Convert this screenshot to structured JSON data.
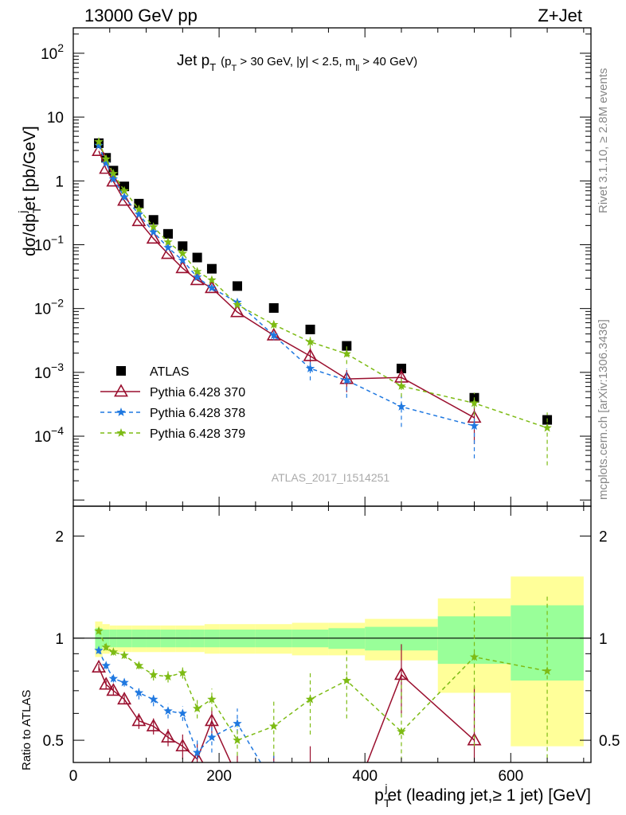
{
  "header": {
    "left": "13000 GeV pp",
    "right": "Z+Jet"
  },
  "plot_title": {
    "main": "Jet p",
    "main_sub": "T",
    "cond_a": "(p",
    "cond_a_sub": "T",
    "cond_b": " > 30 GeV, |y| < 2.5, m",
    "cond_b_sub": "ll",
    "cond_c": " > 40 GeV)"
  },
  "side_labels": {
    "rivet": "Rivet 3.1.10, ≥ 2.8M events",
    "mcplots": "mcplots.cern.ch [arXiv:1306.3436]"
  },
  "analysis_id": "ATLAS_2017_I1514251",
  "axes": {
    "ylabel_main": {
      "a": "dσ/dp",
      "a_sub": "T",
      "a_sup": "j",
      "b": "et [pb/GeV]"
    },
    "ylabel_ratio": "Ratio to ATLAS",
    "xlabel": {
      "a": "p",
      "a_sub": "T",
      "a_sup": "j",
      "b": "et (leading jet,≥ 1 jet) [GeV]"
    },
    "x_ticks": [
      "0",
      "200",
      "400",
      "600"
    ],
    "y_ticks_main": [
      {
        "base": "10",
        "exp": "2",
        "value": 100
      },
      {
        "base": "10",
        "exp": "",
        "value": 10
      },
      {
        "base": "1",
        "exp": "",
        "value": 1
      },
      {
        "base": "10",
        "exp": "−1",
        "value": 0.1
      },
      {
        "base": "10",
        "exp": "−2",
        "value": 0.01
      },
      {
        "base": "10",
        "exp": "−3",
        "value": 0.001
      },
      {
        "base": "10",
        "exp": "−4",
        "value": 0.0001
      }
    ],
    "y_ticks_ratio": [
      "0.5",
      "1",
      "2"
    ]
  },
  "legend": [
    {
      "label": "ATLAS",
      "color": "#000000",
      "marker": "square"
    },
    {
      "label": "Pythia 6.428 370",
      "color": "#9a0f2e",
      "marker": "open-triangle"
    },
    {
      "label": "Pythia 6.428 378",
      "color": "#1f78e0",
      "marker": "star"
    },
    {
      "label": "Pythia 6.428 379",
      "color": "#7dbb14",
      "marker": "star"
    }
  ],
  "chart_data": {
    "type": "scatter",
    "x_log": false,
    "y_log_main": true,
    "xlim": [
      0,
      710
    ],
    "ylim_main": [
      8e-06,
      250
    ],
    "ylim_ratio": [
      0.43,
      2.45
    ],
    "bins": [
      {
        "x": 35,
        "lo": 30,
        "hi": 40,
        "band_in": 0.07,
        "band_out": 0.12
      },
      {
        "x": 45,
        "lo": 40,
        "hi": 50,
        "band_in": 0.06,
        "band_out": 0.1
      },
      {
        "x": 55,
        "lo": 50,
        "hi": 60,
        "band_in": 0.06,
        "band_out": 0.09
      },
      {
        "x": 70,
        "lo": 60,
        "hi": 80,
        "band_in": 0.06,
        "band_out": 0.09
      },
      {
        "x": 90,
        "lo": 80,
        "hi": 100,
        "band_in": 0.06,
        "band_out": 0.09
      },
      {
        "x": 110,
        "lo": 100,
        "hi": 120,
        "band_in": 0.06,
        "band_out": 0.09
      },
      {
        "x": 130,
        "lo": 120,
        "hi": 140,
        "band_in": 0.06,
        "band_out": 0.09
      },
      {
        "x": 150,
        "lo": 140,
        "hi": 160,
        "band_in": 0.06,
        "band_out": 0.09
      },
      {
        "x": 170,
        "lo": 160,
        "hi": 180,
        "band_in": 0.06,
        "band_out": 0.09
      },
      {
        "x": 190,
        "lo": 180,
        "hi": 200,
        "band_in": 0.06,
        "band_out": 0.1
      },
      {
        "x": 225,
        "lo": 200,
        "hi": 250,
        "band_in": 0.06,
        "band_out": 0.1
      },
      {
        "x": 275,
        "lo": 250,
        "hi": 300,
        "band_in": 0.06,
        "band_out": 0.1
      },
      {
        "x": 325,
        "lo": 300,
        "hi": 350,
        "band_in": 0.06,
        "band_out": 0.11
      },
      {
        "x": 375,
        "lo": 350,
        "hi": 400,
        "band_in": 0.07,
        "band_out": 0.11
      },
      {
        "x": 450,
        "lo": 400,
        "hi": 500,
        "band_in": 0.08,
        "band_out": 0.14
      },
      {
        "x": 550,
        "lo": 500,
        "hi": 600,
        "band_in": 0.16,
        "band_out": 0.31
      },
      {
        "x": 650,
        "lo": 600,
        "hi": 700,
        "band_in": 0.25,
        "band_out": 0.52
      }
    ],
    "series": [
      {
        "name": "ATLAS",
        "color": "#000000",
        "marker": "square",
        "values": [
          3.9,
          2.3,
          1.45,
          0.82,
          0.44,
          0.245,
          0.148,
          0.095,
          0.063,
          0.042,
          0.0225,
          0.0102,
          0.0047,
          0.0026,
          0.00115,
          0.0004,
          0.00018
        ]
      },
      {
        "name": "Pythia 6.428 370",
        "color": "#9a0f2e",
        "marker": "open-triangle",
        "dash": "",
        "values": [
          2.95,
          1.55,
          0.98,
          0.49,
          0.235,
          0.125,
          0.072,
          0.043,
          0.028,
          0.021,
          0.0088,
          0.0038,
          0.0018,
          0.00079,
          0.00083,
          0.000195,
          null
        ],
        "err_lo": [
          0,
          0,
          0,
          0,
          0,
          0,
          0,
          0,
          0,
          0,
          0,
          0.0004,
          0.0005,
          0.0003,
          0.00025,
          0.00012,
          null
        ],
        "err_hi": [
          0,
          0,
          0,
          0,
          0,
          0,
          0,
          0,
          0,
          0,
          0,
          0.0004,
          0.0006,
          0.0003,
          0.0003,
          0.00015,
          null
        ],
        "ratio": [
          0.82,
          0.73,
          0.7,
          0.66,
          0.57,
          0.55,
          0.51,
          0.48,
          0.44,
          0.57,
          0.39,
          0.37,
          0.38,
          0.3,
          0.78,
          0.5,
          null
        ],
        "ratio_err": [
          0.02,
          0.02,
          0.02,
          0.02,
          0.03,
          0.03,
          0.03,
          0.04,
          0.05,
          0.05,
          0.06,
          0.08,
          0.1,
          0.12,
          0.18,
          0.22,
          null
        ]
      },
      {
        "name": "Pythia 6.428 378",
        "color": "#1f78e0",
        "marker": "star",
        "dash": "5,4",
        "values": [
          3.6,
          1.9,
          1.07,
          0.56,
          0.3,
          0.158,
          0.09,
          0.057,
          0.031,
          0.021,
          0.0125,
          0.0038,
          0.00115,
          0.00075,
          0.00029,
          0.000145,
          null
        ],
        "err_lo": [
          0,
          0,
          0,
          0,
          0,
          0,
          0,
          0,
          0,
          0,
          0,
          0.0006,
          0.0004,
          0.00035,
          0.00015,
          0.0001,
          null
        ],
        "err_hi": [
          0,
          0,
          0,
          0,
          0,
          0,
          0,
          0,
          0,
          0,
          0,
          0.0006,
          0.0005,
          0.0004,
          0.00015,
          0.00015,
          null
        ],
        "ratio": [
          0.92,
          0.83,
          0.76,
          0.74,
          0.69,
          0.66,
          0.61,
          0.6,
          0.46,
          0.51,
          0.56,
          0.37,
          null,
          null,
          null,
          null,
          null
        ],
        "ratio_err": [
          0.02,
          0.02,
          0.02,
          0.02,
          0.03,
          0.03,
          0.03,
          0.03,
          0.04,
          0.05,
          0.06,
          0.08,
          null,
          null,
          null,
          null,
          null
        ]
      },
      {
        "name": "Pythia 6.428 379",
        "color": "#7dbb14",
        "marker": "star",
        "dash": "5,4",
        "values": [
          4.1,
          2.2,
          1.3,
          0.7,
          0.36,
          0.19,
          0.11,
          0.073,
          0.038,
          0.028,
          0.0115,
          0.0056,
          0.003,
          0.00195,
          0.00061,
          0.00033,
          0.000135
        ],
        "err_lo": [
          0,
          0,
          0,
          0,
          0,
          0,
          0,
          0,
          0,
          0,
          0,
          0.0008,
          0.0006,
          0.0006,
          0.0002,
          0.00012,
          0.0001
        ],
        "err_hi": [
          0,
          0,
          0,
          0,
          0,
          0,
          0,
          0,
          0,
          0,
          0,
          0.0008,
          0.0007,
          0.0006,
          0.0002,
          0.00015,
          0.0001
        ],
        "ratio": [
          1.05,
          0.94,
          0.91,
          0.89,
          0.83,
          0.78,
          0.77,
          0.79,
          0.62,
          0.66,
          0.5,
          0.55,
          0.66,
          0.75,
          0.53,
          0.88,
          0.8
        ],
        "ratio_err": [
          0.02,
          0.02,
          0.02,
          0.02,
          0.02,
          0.03,
          0.03,
          0.03,
          0.04,
          0.05,
          0.05,
          0.1,
          0.14,
          0.17,
          0.22,
          0.4,
          0.55
        ]
      }
    ]
  }
}
